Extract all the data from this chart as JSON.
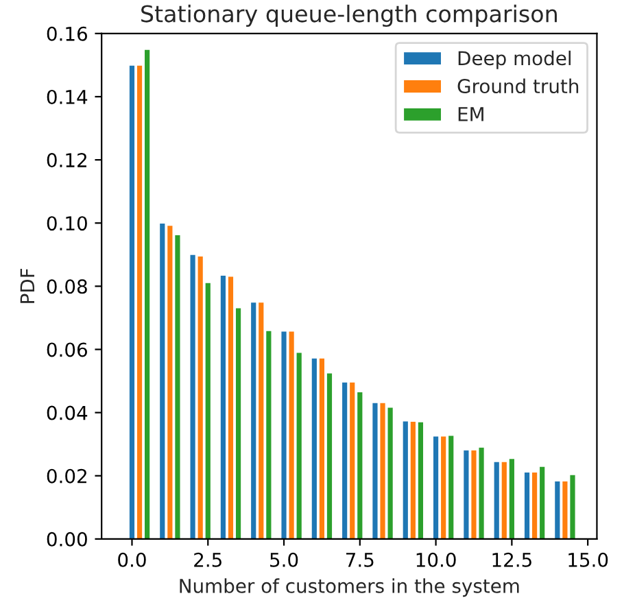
{
  "chart_data": {
    "type": "bar",
    "title": "Stationary queue-length comparison",
    "xlabel": "Number of customers in the system",
    "ylabel": "PDF",
    "xlim": [
      -1.0,
      15.3
    ],
    "xticks": [
      {
        "value": 0,
        "label": "0.0"
      },
      {
        "value": 2.5,
        "label": "2.5"
      },
      {
        "value": 5,
        "label": "5.0"
      },
      {
        "value": 7.5,
        "label": "7.5"
      },
      {
        "value": 10,
        "label": "10.0"
      },
      {
        "value": 12.5,
        "label": "12.5"
      },
      {
        "value": 15,
        "label": "15.0"
      }
    ],
    "ylim": [
      0,
      0.16
    ],
    "yticks": [
      {
        "value": 0,
        "label": "0.00"
      },
      {
        "value": 0.02,
        "label": "0.02"
      },
      {
        "value": 0.04,
        "label": "0.04"
      },
      {
        "value": 0.06,
        "label": "0.06"
      },
      {
        "value": 0.08,
        "label": "0.08"
      },
      {
        "value": 0.1,
        "label": "0.10"
      },
      {
        "value": 0.12,
        "label": "0.12"
      },
      {
        "value": 0.14,
        "label": "0.14"
      },
      {
        "value": 0.16,
        "label": "0.16"
      }
    ],
    "grid": false,
    "legend": "top right",
    "series": [
      {
        "name": "Deep model",
        "color": "#1f77b4",
        "x": [
          0,
          1,
          2,
          3,
          4,
          5,
          6,
          7,
          8,
          9,
          10,
          11,
          12,
          13,
          14
        ],
        "values": [
          0.15,
          0.1,
          0.0901,
          0.0835,
          0.075,
          0.0658,
          0.0573,
          0.0497,
          0.0432,
          0.0374,
          0.0326,
          0.0282,
          0.0245,
          0.0212,
          0.0184
        ]
      },
      {
        "name": "Ground truth",
        "color": "#ff7f0e",
        "x": [
          0.25,
          1.25,
          2.25,
          3.25,
          4.25,
          5.25,
          6.25,
          7.25,
          8.25,
          9.25,
          10.25,
          11.25,
          12.25,
          13.25,
          14.25
        ],
        "values": [
          0.15,
          0.0993,
          0.0896,
          0.0832,
          0.075,
          0.0658,
          0.0573,
          0.0497,
          0.0432,
          0.0373,
          0.0326,
          0.0282,
          0.0245,
          0.0212,
          0.0184
        ]
      },
      {
        "name": "EM",
        "color": "#2ca02c",
        "x": [
          0.5,
          1.5,
          2.5,
          3.5,
          4.5,
          5.5,
          6.5,
          7.5,
          8.5,
          9.5,
          10.5,
          11.5,
          12.5,
          13.5,
          14.5
        ],
        "values": [
          0.155,
          0.0963,
          0.0812,
          0.0732,
          0.066,
          0.0591,
          0.0526,
          0.0466,
          0.0417,
          0.0371,
          0.0328,
          0.0291,
          0.0255,
          0.023,
          0.0204
        ]
      }
    ]
  }
}
